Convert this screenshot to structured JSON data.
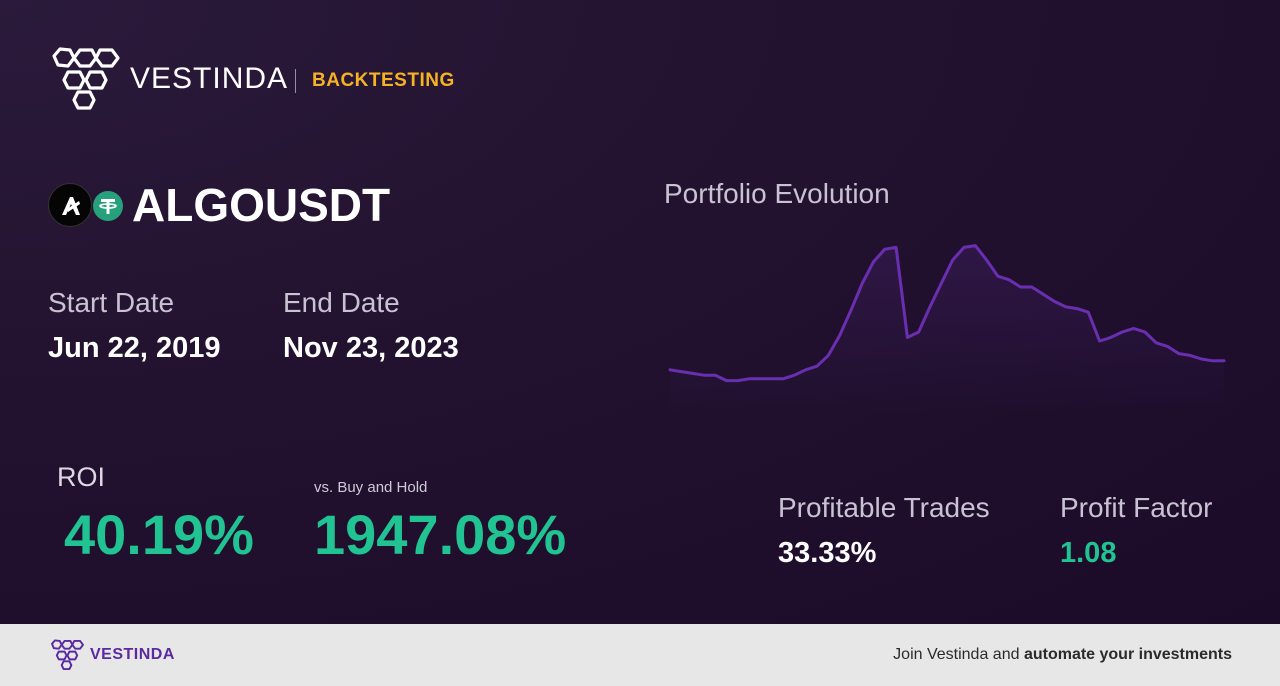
{
  "brand": {
    "name": "VESTINDA",
    "section": "BACKTESTING"
  },
  "pair": {
    "symbol": "ALGOUSDT",
    "base_icon": "algorand-icon",
    "quote_icon": "tether-icon"
  },
  "dates": {
    "start_label": "Start Date",
    "start_value": "Jun 22, 2019",
    "end_label": "End Date",
    "end_value": "Nov 23, 2023"
  },
  "metrics": {
    "roi_label": "ROI",
    "roi_value": "40.19%",
    "vs_label": "vs. Buy and Hold",
    "vs_value": "1947.08%",
    "profitable_trades_label": "Profitable Trades",
    "profitable_trades_value": "33.33%",
    "profit_factor_label": "Profit Factor",
    "profit_factor_value": "1.08"
  },
  "chart_data": {
    "type": "area",
    "title": "Portfolio Evolution",
    "values": [
      0.24,
      0.23,
      0.22,
      0.21,
      0.21,
      0.18,
      0.18,
      0.19,
      0.19,
      0.19,
      0.19,
      0.21,
      0.24,
      0.26,
      0.32,
      0.43,
      0.57,
      0.72,
      0.84,
      0.91,
      0.92,
      0.42,
      0.45,
      0.59,
      0.72,
      0.85,
      0.92,
      0.93,
      0.85,
      0.76,
      0.74,
      0.7,
      0.7,
      0.66,
      0.62,
      0.59,
      0.58,
      0.56,
      0.4,
      0.42,
      0.45,
      0.47,
      0.45,
      0.39,
      0.37,
      0.33,
      0.32,
      0.3,
      0.29,
      0.29
    ],
    "colors": {
      "line": "#6a2fb0",
      "fill": "#3a1c5a"
    }
  },
  "footer": {
    "brand": "VESTINDA",
    "cta_prefix": "Join Vestinda and ",
    "cta_bold": "automate your investments"
  },
  "colors": {
    "accent": "#f5b323",
    "green": "#20c391",
    "purple": "#5a2aa0"
  }
}
